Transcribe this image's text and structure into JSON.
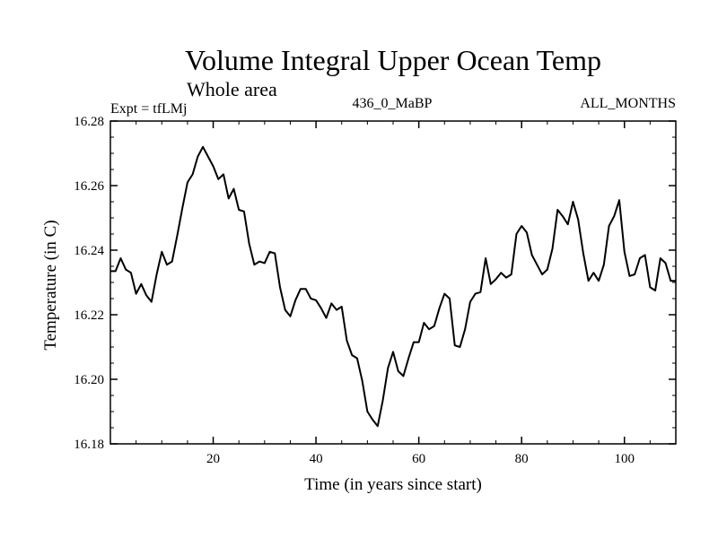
{
  "chart_data": {
    "type": "line",
    "title": "Volume Integral Upper Ocean Temp",
    "subtitle": "Whole area",
    "annotations": {
      "left": "Expt = tfLMj",
      "center": "436_0_MaBP",
      "right": "ALL_MONTHS"
    },
    "xlabel": "Time (in years since start)",
    "ylabel": "Temperature (in C)",
    "xlim": [
      0,
      110
    ],
    "ylim": [
      16.18,
      16.28
    ],
    "xticks": [
      20,
      40,
      60,
      80,
      100
    ],
    "xtick_labels": [
      "20",
      "40",
      "60",
      "80",
      "100"
    ],
    "yticks": [
      16.18,
      16.2,
      16.22,
      16.24,
      16.26,
      16.28
    ],
    "ytick_labels": [
      "16.18",
      "16.20",
      "16.22",
      "16.24",
      "16.26",
      "16.28"
    ],
    "grid": false,
    "series": [
      {
        "name": "Volume Integral Upper Ocean Temp",
        "color": "#000000",
        "x": [
          0,
          1,
          2,
          3,
          4,
          5,
          6,
          7,
          8,
          9,
          10,
          11,
          12,
          13,
          14,
          15,
          16,
          17,
          18,
          19,
          20,
          21,
          22,
          23,
          24,
          25,
          26,
          27,
          28,
          29,
          30,
          31,
          32,
          33,
          34,
          35,
          36,
          37,
          38,
          39,
          40,
          41,
          42,
          43,
          44,
          45,
          46,
          47,
          48,
          49,
          50,
          51,
          52,
          53,
          54,
          55,
          56,
          57,
          58,
          59,
          60,
          61,
          62,
          63,
          64,
          65,
          66,
          67,
          68,
          69,
          70,
          71,
          72,
          73,
          74,
          75,
          76,
          77,
          78,
          79,
          80,
          81,
          82,
          83,
          84,
          85,
          86,
          87,
          88,
          89,
          90,
          91,
          92,
          93,
          94,
          95,
          96,
          97,
          98,
          99,
          100,
          101,
          102,
          103,
          104,
          105,
          106,
          107,
          108,
          109,
          110
        ],
        "values": [
          16.2335,
          16.2335,
          16.2375,
          16.234,
          16.233,
          16.2265,
          16.2295,
          16.226,
          16.224,
          16.2325,
          16.2395,
          16.2355,
          16.2365,
          16.2445,
          16.253,
          16.261,
          16.2635,
          16.269,
          16.272,
          16.269,
          16.266,
          16.262,
          16.2635,
          16.256,
          16.259,
          16.2525,
          16.252,
          16.242,
          16.2355,
          16.2365,
          16.236,
          16.2395,
          16.239,
          16.2285,
          16.2215,
          16.2195,
          16.2245,
          16.228,
          16.228,
          16.225,
          16.2245,
          16.222,
          16.219,
          16.2235,
          16.2215,
          16.2225,
          16.212,
          16.2075,
          16.2065,
          16.1995,
          16.19,
          16.1875,
          16.1855,
          16.1935,
          16.2035,
          16.2085,
          16.2025,
          16.201,
          16.2065,
          16.2115,
          16.2115,
          16.2175,
          16.2155,
          16.2165,
          16.222,
          16.2265,
          16.225,
          16.2105,
          16.21,
          16.2155,
          16.224,
          16.2265,
          16.227,
          16.2375,
          16.2295,
          16.231,
          16.233,
          16.2315,
          16.2325,
          16.245,
          16.2475,
          16.2455,
          16.2385,
          16.2355,
          16.2325,
          16.234,
          16.2405,
          16.2525,
          16.2505,
          16.248,
          16.255,
          16.2495,
          16.239,
          16.2305,
          16.233,
          16.2305,
          16.2355,
          16.2475,
          16.2505,
          16.2555,
          16.2395,
          16.232,
          16.2325,
          16.2375,
          16.2385,
          16.2285,
          16.2275,
          16.2375,
          16.236,
          16.2305,
          16.2305
        ]
      }
    ]
  }
}
